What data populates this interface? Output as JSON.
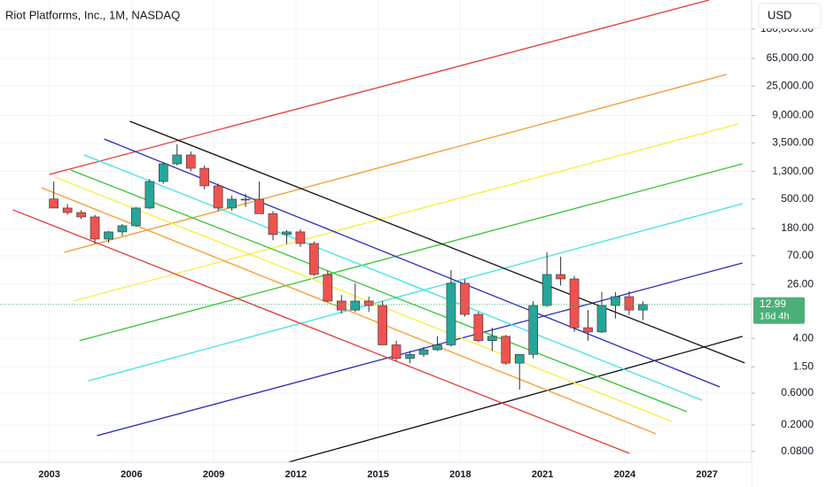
{
  "chart_data": {
    "type": "candlestick",
    "title": "Riot Platforms, Inc., 1M, NASDAQ",
    "currency": "USD",
    "log_scale": true,
    "grid": true,
    "up_color": "#26a69a",
    "down_color": "#ef5350",
    "x": [
      2003.0,
      2003.5,
      2004.0,
      2004.5,
      2005.0,
      2005.5,
      2006.0,
      2006.5,
      2007.0,
      2007.5,
      2008.0,
      2008.5,
      2009.0,
      2009.5,
      2010.0,
      2010.5,
      2011.0,
      2011.5,
      2012.0,
      2012.5,
      2013.0,
      2013.5,
      2014.0,
      2014.5,
      2015.0,
      2015.5,
      2016.0,
      2016.5,
      2017.0,
      2017.5,
      2018.0,
      2018.5,
      2019.0,
      2019.5,
      2020.0,
      2020.5,
      2021.0,
      2021.5,
      2022.0,
      2022.5,
      2023.0,
      2023.5,
      2024.0,
      2024.5
    ],
    "open": [
      500,
      366,
      313,
      269,
      125,
      160,
      198,
      366,
      916,
      1690,
      2300,
      1450,
      787,
      366,
      497,
      497,
      300,
      146,
      160,
      107,
      36.6,
      14.6,
      10.7,
      14.6,
      12.5,
      3.2,
      2.0,
      2.3,
      2.7,
      3.2,
      27,
      9.2,
      3.7,
      4.3,
      1.7,
      2.3,
      12.5,
      36.6,
      31.4,
      5.8,
      5.0,
      12.5,
      17.0,
      10.7
    ],
    "high": [
      916,
      420,
      340,
      290,
      165,
      210,
      380,
      1000,
      1800,
      3320,
      2600,
      1600,
      850,
      560,
      600,
      916,
      330,
      170,
      175,
      115,
      42,
      18,
      27,
      17,
      14.6,
      3.7,
      2.6,
      3.0,
      4.3,
      42.7,
      31,
      10,
      5.8,
      4.5,
      2.3,
      14.6,
      79,
      67.6,
      35,
      10.7,
      20,
      19.9,
      20.5,
      14.5
    ],
    "low": [
      366,
      290,
      250,
      107,
      110,
      140,
      190,
      350,
      850,
      1600,
      1300,
      700,
      330,
      330,
      380,
      400,
      120,
      105,
      95,
      35,
      14,
      9.5,
      10,
      10,
      3.2,
      1.8,
      1.7,
      2.1,
      2.6,
      3.0,
      8.5,
      3.5,
      2.6,
      1.6,
      0.68,
      2.0,
      12,
      25,
      5.0,
      3.7,
      4.8,
      8,
      9.0,
      7.5
    ],
    "close": [
      366,
      313,
      269,
      125,
      160,
      198,
      366,
      916,
      1690,
      2300,
      1450,
      787,
      366,
      497,
      497,
      300,
      146,
      160,
      107,
      36.6,
      14.6,
      10.7,
      14.6,
      12.5,
      3.2,
      2.0,
      2.3,
      2.7,
      3.2,
      27,
      9.2,
      3.7,
      4.3,
      1.7,
      2.3,
      12.5,
      36.6,
      31.4,
      5.8,
      5.0,
      12.5,
      17.0,
      10.7,
      12.99
    ],
    "xlim": [
      2001.2,
      2028.63
    ],
    "ylim": [
      0.055,
      492000
    ],
    "xticks": [
      2003,
      2006,
      2009,
      2012,
      2015,
      2018,
      2021,
      2024,
      2027
    ],
    "yticks": [
      {
        "value": 180000,
        "label": "180,000.00"
      },
      {
        "value": 65000,
        "label": "65,000.00"
      },
      {
        "value": 25000,
        "label": "25,000.00"
      },
      {
        "value": 9000,
        "label": "9,000.00"
      },
      {
        "value": 3500,
        "label": "3,500.00"
      },
      {
        "value": 1300,
        "label": "1,300.00"
      },
      {
        "value": 500,
        "label": "500.00"
      },
      {
        "value": 180,
        "label": "180.00"
      },
      {
        "value": 70,
        "label": "70.00"
      },
      {
        "value": 26,
        "label": "26.00"
      },
      {
        "value": 4,
        "label": "4.00"
      },
      {
        "value": 1.5,
        "label": "1.50"
      },
      {
        "value": 0.6,
        "label": "0.6000"
      },
      {
        "value": 0.2,
        "label": "0.2000"
      },
      {
        "value": 0.08,
        "label": "0.0800"
      }
    ],
    "last_price": {
      "value": 12.99,
      "countdown": "16d 4h",
      "color": "#4caf7a"
    },
    "lines": [
      {
        "color": "#e53935",
        "x": [
          2003.0,
          2027.08
        ],
        "y": [
          1170,
          492000
        ]
      },
      {
        "color": "#f29a2e",
        "x": [
          2003.55,
          2027.72
        ],
        "y": [
          79,
          37400
        ]
      },
      {
        "color": "#f5f03c",
        "x": [
          2003.87,
          2028.14
        ],
        "y": [
          14.6,
          6730
        ]
      },
      {
        "color": "#35c435",
        "x": [
          2004.1,
          2028.3
        ],
        "y": [
          3.7,
          1690
        ]
      },
      {
        "color": "#3fe3e3",
        "x": [
          2004.42,
          2028.3
        ],
        "y": [
          0.92,
          425
        ]
      },
      {
        "color": "#2a2ab8",
        "x": [
          2004.74,
          2028.3
        ],
        "y": [
          0.138,
          54.6
        ]
      },
      {
        "color": "#111111",
        "x": [
          2011.72,
          2028.3
        ],
        "y": [
          0.055,
          4.3
        ]
      },
      {
        "color": "#111111",
        "x": [
          2005.94,
          2028.38
        ],
        "y": [
          7380,
          1.71
        ]
      },
      {
        "color": "#2a2ab8",
        "x": [
          2005.0,
          2027.47
        ],
        "y": [
          3990,
          0.746
        ]
      },
      {
        "color": "#3fe3e3",
        "x": [
          2004.27,
          2026.82
        ],
        "y": [
          2300,
          0.471
        ]
      },
      {
        "color": "#35c435",
        "x": [
          2003.78,
          2026.27
        ],
        "y": [
          1365,
          0.316
        ]
      },
      {
        "color": "#f5f03c",
        "x": [
          2003.2,
          2025.72
        ],
        "y": [
          1070,
          0.226
        ]
      },
      {
        "color": "#f29a2e",
        "x": [
          2002.71,
          2025.14
        ],
        "y": [
          740,
          0.147
        ]
      },
      {
        "color": "#e53935",
        "x": [
          2001.67,
          2024.17
        ],
        "y": [
          344,
          0.0748
        ]
      }
    ]
  }
}
